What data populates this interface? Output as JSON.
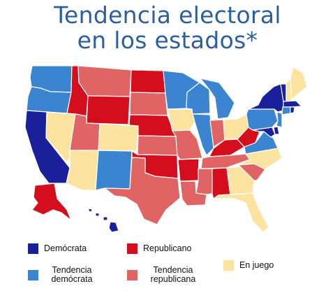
{
  "title": {
    "line1": "Tendencia electoral",
    "line2": "en los estados*"
  },
  "colors": {
    "democrata": "#1a1f9a",
    "tendencia_democrata": "#3a84d2",
    "republicano": "#d40e1c",
    "tendencia_republicana": "#e06464",
    "en_juego": "#fde3a0",
    "border": "#ffffff"
  },
  "legend": [
    {
      "key": "democrata",
      "label": "Demócrata",
      "color": "#1a1f9a"
    },
    {
      "key": "republicano",
      "label": "Republicano",
      "color": "#d40e1c"
    },
    {
      "key": "tendencia_democrata",
      "label": "Tendencia demócrata",
      "color": "#3a84d2"
    },
    {
      "key": "tendencia_republicana",
      "label": "Tendencia republicana",
      "color": "#e06464"
    },
    {
      "key": "en_juego",
      "label": "En juego",
      "color": "#fde3a0"
    }
  ],
  "states": {
    "WA": "tendencia_democrata",
    "OR": "tendencia_democrata",
    "CA": "democrata",
    "NV": "en_juego",
    "ID": "republicano",
    "MT": "tendencia_republicana",
    "WY": "republicano",
    "UT": "tendencia_republicana",
    "AZ": "en_juego",
    "CO": "en_juego",
    "NM": "tendencia_democrata",
    "ND": "republicano",
    "SD": "tendencia_republicana",
    "NE": "republicano",
    "KS": "tendencia_republicana",
    "OK": "republicano",
    "TX": "tendencia_republicana",
    "MN": "tendencia_democrata",
    "IA": "en_juego",
    "MO": "tendencia_republicana",
    "AR": "republicano",
    "LA": "tendencia_republicana",
    "WI": "tendencia_democrata",
    "IL": "tendencia_democrata",
    "MI": "tendencia_democrata",
    "IN": "tendencia_republicana",
    "OH": "en_juego",
    "KY": "republicano",
    "TN": "tendencia_republicana",
    "MS": "tendencia_republicana",
    "AL": "republicano",
    "GA": "en_juego",
    "FL": "en_juego",
    "SC": "tendencia_republicana",
    "NC": "en_juego",
    "VA": "tendencia_democrata",
    "WV": "republicano",
    "PA": "tendencia_democrata",
    "NY": "democrata",
    "VT": "democrata",
    "NH": "en_juego",
    "ME": "en_juego",
    "MA": "democrata",
    "CT": "tendencia_democrata",
    "RI": "democrata",
    "NJ": "tendencia_democrata",
    "DE": "democrata",
    "MD": "democrata",
    "AK": "republicano",
    "HI": "democrata"
  }
}
